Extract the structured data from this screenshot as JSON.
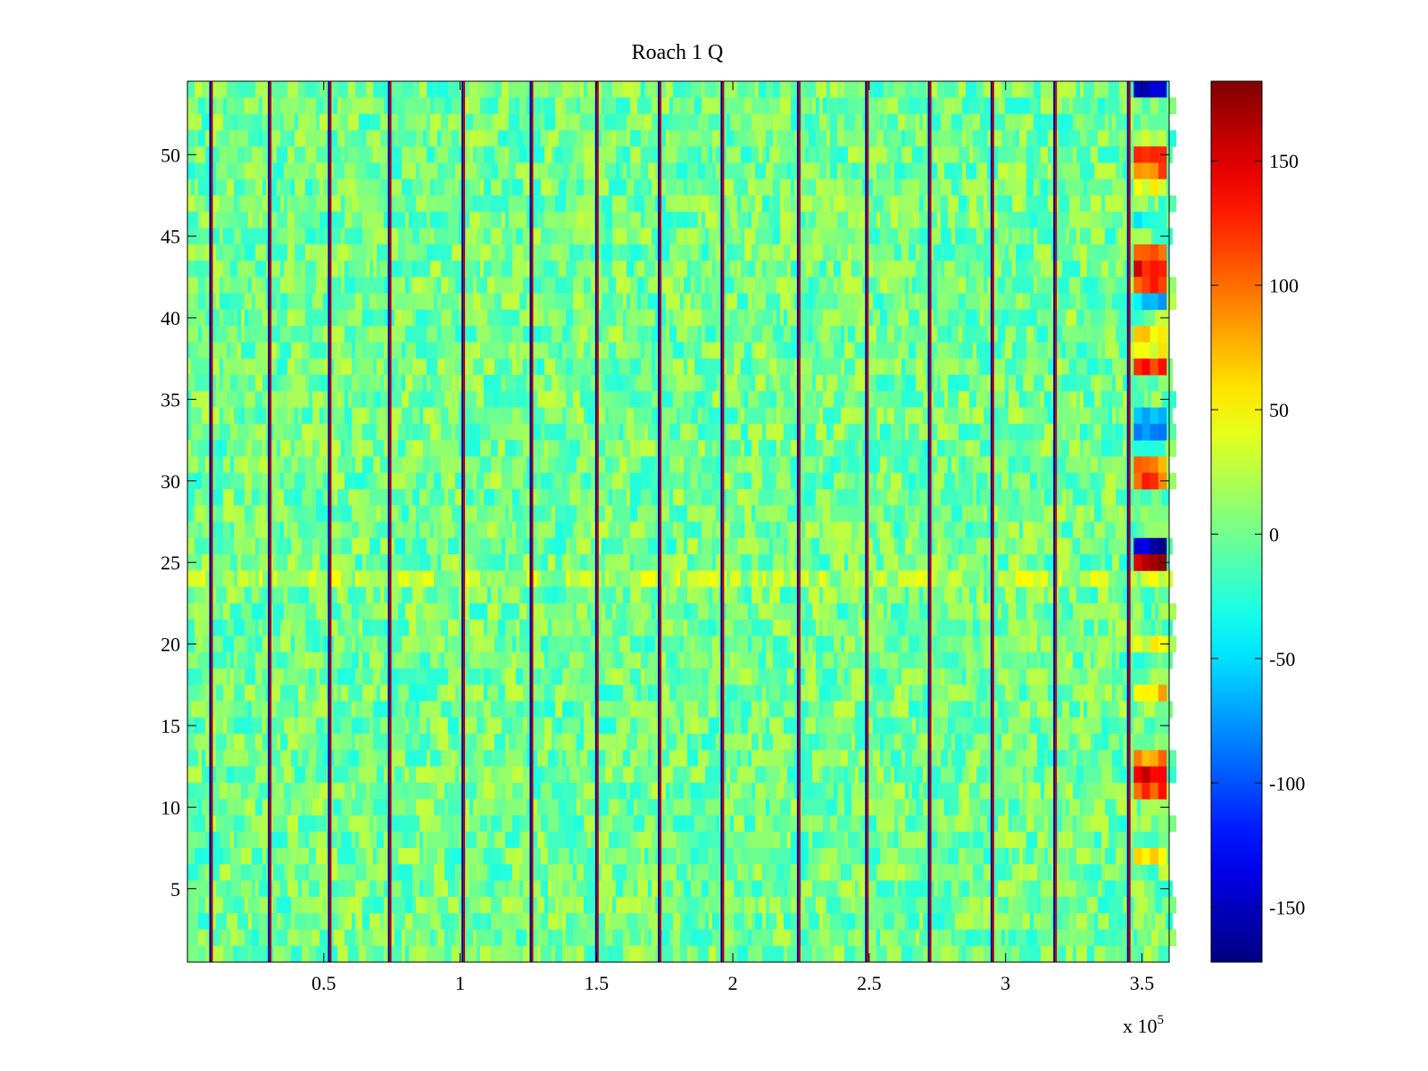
{
  "chart_data": {
    "type": "heatmap",
    "title": "Roach 1 Q",
    "xlabel": "",
    "ylabel": "",
    "x_multiplier_label": "x 10",
    "x_multiplier_exponent": "5",
    "xlim": [
      0,
      360000
    ],
    "ylim": [
      0.5,
      54.5
    ],
    "x_ticks": [
      {
        "value": 0.5,
        "label": "0.5"
      },
      {
        "value": 1,
        "label": "1"
      },
      {
        "value": 1.5,
        "label": "1.5"
      },
      {
        "value": 2,
        "label": "2"
      },
      {
        "value": 2.5,
        "label": "2.5"
      },
      {
        "value": 3,
        "label": "3"
      },
      {
        "value": 3.5,
        "label": "3.5"
      }
    ],
    "y_ticks": [
      {
        "value": 5,
        "label": "5"
      },
      {
        "value": 10,
        "label": "10"
      },
      {
        "value": 15,
        "label": "15"
      },
      {
        "value": 20,
        "label": "20"
      },
      {
        "value": 25,
        "label": "25"
      },
      {
        "value": 30,
        "label": "30"
      },
      {
        "value": 35,
        "label": "35"
      },
      {
        "value": 40,
        "label": "40"
      },
      {
        "value": 45,
        "label": "45"
      },
      {
        "value": 50,
        "label": "50"
      }
    ],
    "n_rows": 54,
    "background_level": 0,
    "colorbar": {
      "colormap": "jet",
      "range": [
        -172,
        182
      ],
      "ticks": [
        {
          "value": 150,
          "label": "150"
        },
        {
          "value": 100,
          "label": "100"
        },
        {
          "value": 50,
          "label": "50"
        },
        {
          "value": 0,
          "label": "0"
        },
        {
          "value": -50,
          "label": "-50"
        },
        {
          "value": -100,
          "label": "-100"
        },
        {
          "value": -150,
          "label": "-150"
        }
      ]
    },
    "stripes_x": [
      8500,
      30000,
      52000,
      74000,
      101000,
      126000,
      150000,
      173000,
      196000,
      224000,
      249000,
      272000,
      295000,
      318000,
      345000
    ],
    "right_block": {
      "x_range": [
        347000,
        359000
      ],
      "row_values": [
        {
          "row": 54,
          "value": -140
        },
        {
          "row": 53,
          "value": 0
        },
        {
          "row": 51,
          "value": 30
        },
        {
          "row": 50,
          "value": 130
        },
        {
          "row": 49,
          "value": 100
        },
        {
          "row": 48,
          "value": 40
        },
        {
          "row": 46,
          "value": -40
        },
        {
          "row": 44,
          "value": 110
        },
        {
          "row": 43,
          "value": 140
        },
        {
          "row": 42,
          "value": 120
        },
        {
          "row": 41,
          "value": -60
        },
        {
          "row": 39,
          "value": 60
        },
        {
          "row": 38,
          "value": 40
        },
        {
          "row": 37,
          "value": 130
        },
        {
          "row": 34,
          "value": -70
        },
        {
          "row": 33,
          "value": -90
        },
        {
          "row": 31,
          "value": 90
        },
        {
          "row": 30,
          "value": 110
        },
        {
          "row": 26,
          "value": -150
        },
        {
          "row": 25,
          "value": 160
        },
        {
          "row": 20,
          "value": 40
        },
        {
          "row": 17,
          "value": 70
        },
        {
          "row": 13,
          "value": 90
        },
        {
          "row": 12,
          "value": 140
        },
        {
          "row": 11,
          "value": 120
        },
        {
          "row": 7,
          "value": 50
        }
      ]
    }
  }
}
